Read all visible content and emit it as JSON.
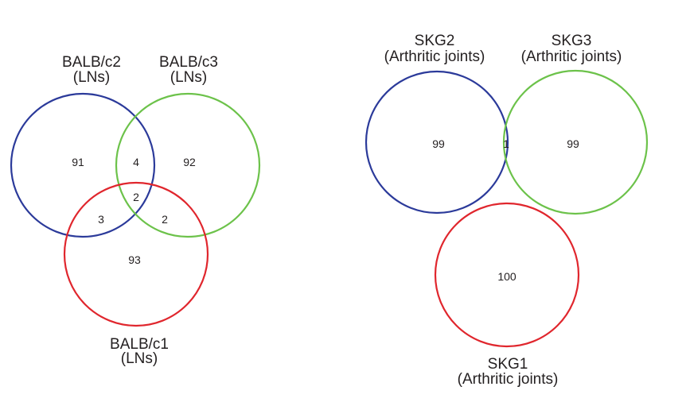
{
  "colors": {
    "blue": "#2b3a9a",
    "green": "#6cc24a",
    "red": "#e0262d",
    "text": "#231f20"
  },
  "left_venn": {
    "set_a": {
      "name": "BALB/c2",
      "sub": "(LNs)"
    },
    "set_b": {
      "name": "BALB/c3",
      "sub": "(LNs)"
    },
    "set_c": {
      "name": "BALB/c1",
      "sub": "(LNs)"
    },
    "regions": {
      "a_only": "91",
      "b_only": "92",
      "c_only": "93",
      "ab": "4",
      "ac": "3",
      "bc": "2",
      "abc": "2"
    }
  },
  "right_venn": {
    "set_a": {
      "name": "SKG2",
      "sub": "(Arthritic joints)"
    },
    "set_b": {
      "name": "SKG3",
      "sub": "(Arthritic joints)"
    },
    "set_c": {
      "name": "SKG1",
      "sub": "(Arthritic joints)"
    },
    "regions": {
      "a_only": "99",
      "b_only": "99",
      "c_only": "100",
      "ab": "1"
    }
  }
}
